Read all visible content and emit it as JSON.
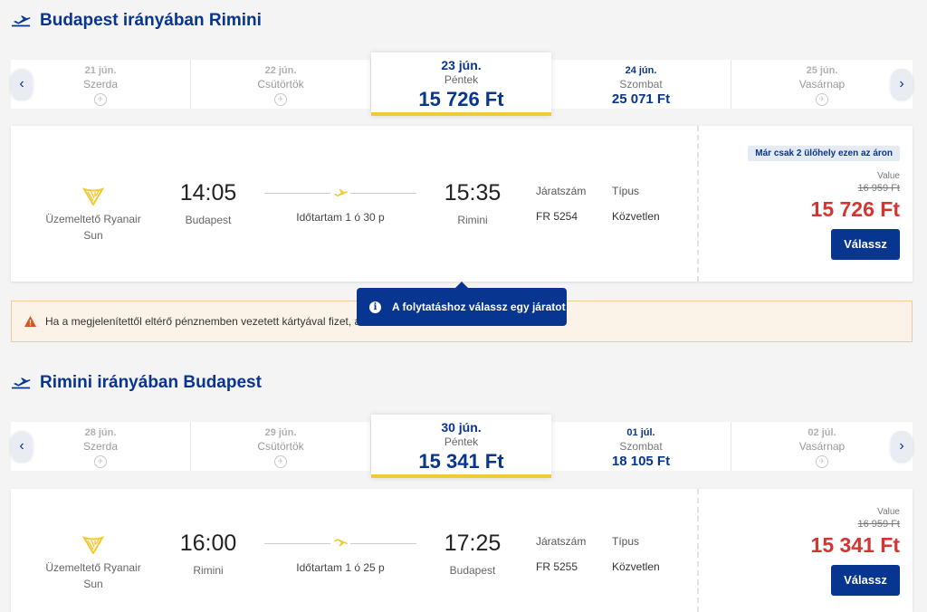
{
  "colors": {
    "brand_blue": "#073590",
    "price_red": "#d33535",
    "accent_yellow": "#f1c933"
  },
  "outbound": {
    "title": "Budapest irányában Rimini",
    "icon": "plane-takeoff-icon",
    "days": [
      {
        "date": "21 jún.",
        "weekday": "Szerda",
        "price": null
      },
      {
        "date": "22 jún.",
        "weekday": "Csütörtök",
        "price": null
      },
      {
        "date": "23 jún.",
        "weekday": "Péntek",
        "price": "15 726 Ft"
      },
      {
        "date": "24 jún.",
        "weekday": "Szombat",
        "price": "25 071 Ft"
      },
      {
        "date": "25 jún.",
        "weekday": "Vasárnap",
        "price": null
      }
    ],
    "flight": {
      "operator": "Üzemeltető Ryanair Sun",
      "depart_time": "14:05",
      "depart_city": "Budapest",
      "duration": "Időtartam 1 ó 30 p",
      "arrive_time": "15:35",
      "arrive_city": "Rimini",
      "flight_no_label": "Járatszám",
      "flight_no": "FR 5254",
      "type_label": "Típus",
      "type": "Közvetlen",
      "seats_left": "Már csak 2 ülőhely ezen az áron",
      "fare_label": "Value",
      "old_price": "16 959 Ft",
      "price": "15 726 Ft",
      "select_label": "Válassz"
    }
  },
  "warning": {
    "text": "Ha a megjelenítettől eltérő pénznemben vezetett kártyával fizet, a"
  },
  "tooltip": {
    "text": "A folytatáshoz válassz egy járatot"
  },
  "inbound": {
    "title": "Rimini irányában Budapest",
    "icon": "plane-takeoff-icon",
    "days": [
      {
        "date": "28 jún.",
        "weekday": "Szerda",
        "price": null
      },
      {
        "date": "29 jún.",
        "weekday": "Csütörtök",
        "price": null
      },
      {
        "date": "30 jún.",
        "weekday": "Péntek",
        "price": "15 341 Ft"
      },
      {
        "date": "01 júl.",
        "weekday": "Szombat",
        "price": "18 105 Ft"
      },
      {
        "date": "02 júl.",
        "weekday": "Vasárnap",
        "price": null
      }
    ],
    "flight": {
      "operator": "Üzemeltető Ryanair Sun",
      "depart_time": "16:00",
      "depart_city": "Rimini",
      "duration": "Időtartam 1 ó 25 p",
      "arrive_time": "17:25",
      "arrive_city": "Budapest",
      "flight_no_label": "Járatszám",
      "flight_no": "FR 5255",
      "type_label": "Típus",
      "type": "Közvetlen",
      "fare_label": "Value",
      "old_price": "16 959 Ft",
      "price": "15 341 Ft",
      "select_label": "Válassz"
    }
  }
}
